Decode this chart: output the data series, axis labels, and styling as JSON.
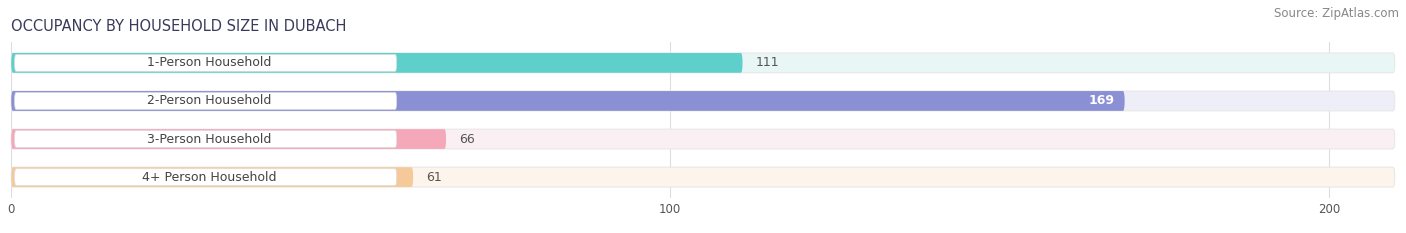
{
  "title": "OCCUPANCY BY HOUSEHOLD SIZE IN DUBACH",
  "source": "Source: ZipAtlas.com",
  "categories": [
    "1-Person Household",
    "2-Person Household",
    "3-Person Household",
    "4+ Person Household"
  ],
  "values": [
    111,
    169,
    66,
    61
  ],
  "bar_colors": [
    "#5ECFCA",
    "#8B8FD4",
    "#F4A8BA",
    "#F5C99A"
  ],
  "bar_bg_colors": [
    "#E8F6F6",
    "#EDEEF8",
    "#FAF0F3",
    "#FDF5EC"
  ],
  "label_pill_color": "#FFFFFF",
  "label_pill_edge": "#E0E0E0",
  "xlim": [
    0,
    210
  ],
  "xstart": 0,
  "xticks": [
    0,
    100,
    200
  ],
  "title_fontsize": 10.5,
  "source_fontsize": 8.5,
  "label_fontsize": 9,
  "value_fontsize": 9,
  "bar_height": 0.52,
  "bg_color": "#FFFFFF",
  "fig_bg_color": "#FFFFFF",
  "grid_color": "#DDDDDD",
  "title_color": "#3A3A5C",
  "source_color": "#888888",
  "value_inside_color": "#FFFFFF",
  "value_outside_color": "#555555"
}
